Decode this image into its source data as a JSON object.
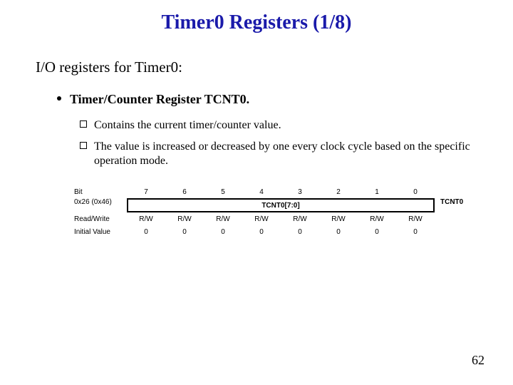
{
  "title_color": "#1a1aaa",
  "title": "Timer0 Registers (1/8)",
  "intro": "I/O registers for Timer0:",
  "b1": "Timer/Counter Register TCNT0.",
  "b2a": "Contains the current timer/counter value.",
  "b2b": "The value is increased or decreased by one every clock cycle based on the specific operation mode.",
  "reg": {
    "row_label_bit": "Bit",
    "row_label_addr": "0x26 (0x46)",
    "row_label_rw": "Read/Write",
    "row_label_init": "Initial Value",
    "bits": [
      "7",
      "6",
      "5",
      "4",
      "3",
      "2",
      "1",
      "0"
    ],
    "field": "TCNT0[7:0]",
    "name": "TCNT0",
    "rw": [
      "R/W",
      "R/W",
      "R/W",
      "R/W",
      "R/W",
      "R/W",
      "R/W",
      "R/W"
    ],
    "init": [
      "0",
      "0",
      "0",
      "0",
      "0",
      "0",
      "0",
      "0"
    ]
  },
  "page": "62"
}
